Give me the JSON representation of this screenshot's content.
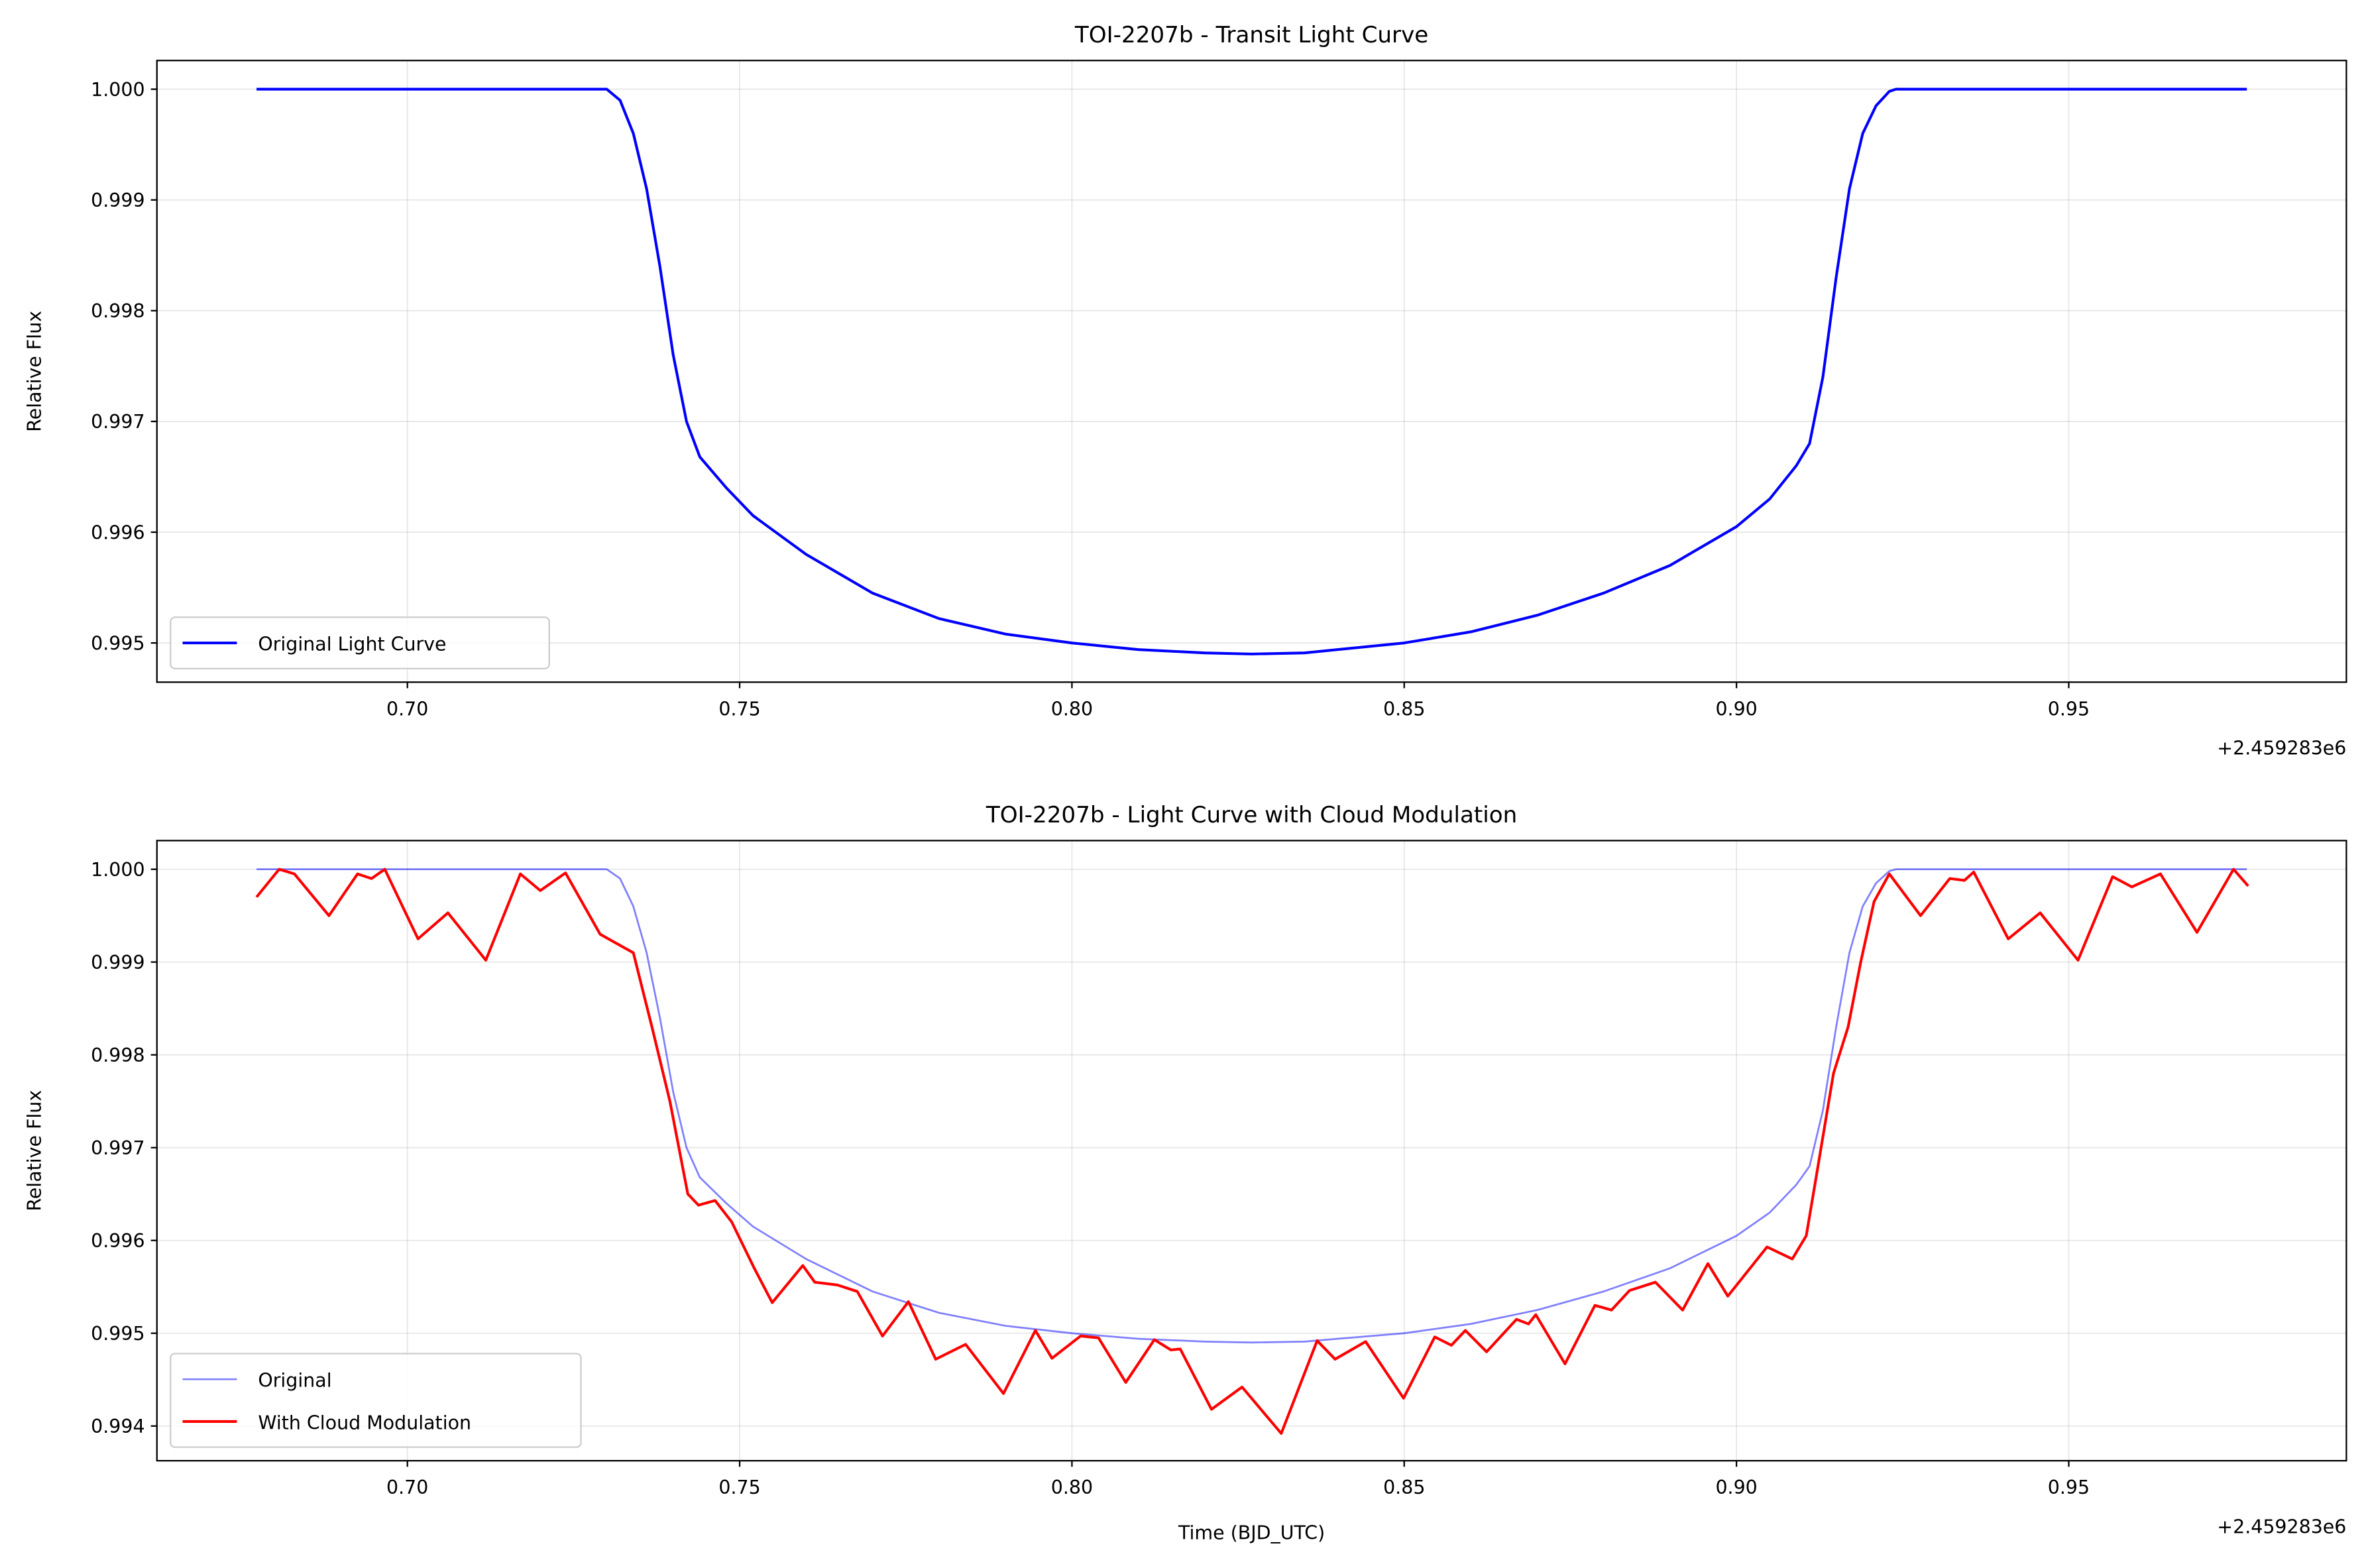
{
  "chart_data": [
    {
      "type": "line",
      "title": "TOI-2207b - Transit Light Curve",
      "ylabel": "Relative Flux",
      "x_offset_label": "+2.459283e6",
      "xlim": [
        0.66231,
        0.99178
      ],
      "ylim": [
        0.994646,
        1.000259
      ],
      "xticks": [
        {
          "value": 0.7,
          "label": "0.70"
        },
        {
          "value": 0.75,
          "label": "0.75"
        },
        {
          "value": 0.8,
          "label": "0.80"
        },
        {
          "value": 0.85,
          "label": "0.85"
        },
        {
          "value": 0.9,
          "label": "0.90"
        },
        {
          "value": 0.95,
          "label": "0.95"
        }
      ],
      "yticks": [
        0.995,
        0.996,
        0.997,
        0.998,
        0.999,
        {
          "value": 1,
          "label": "1.000"
        }
      ],
      "grid": true,
      "legend": "lower left",
      "series": [
        {
          "name": "Original Light Curve",
          "color": "#0000ff",
          "alpha": 1,
          "linewidth": 1.8,
          "x": [
            0.6773,
            0.73,
            0.732,
            0.734,
            0.736,
            0.738,
            0.74,
            0.742,
            0.744,
            0.748,
            0.752,
            0.76,
            0.77,
            0.78,
            0.79,
            0.8,
            0.81,
            0.82,
            0.827,
            0.835,
            0.85,
            0.86,
            0.87,
            0.88,
            0.89,
            0.9,
            0.905,
            0.909,
            0.911,
            0.913,
            0.915,
            0.917,
            0.919,
            0.921,
            0.923,
            0.924,
            0.9768
          ],
          "values": [
            1,
            1,
            0.9999,
            0.9996,
            0.9991,
            0.9984,
            0.9976,
            0.997,
            0.99668,
            0.9964,
            0.99615,
            0.9958,
            0.99545,
            0.99522,
            0.99508,
            0.995,
            0.99494,
            0.99491,
            0.9949,
            0.99491,
            0.995,
            0.9951,
            0.99525,
            0.99545,
            0.9957,
            0.99605,
            0.9963,
            0.9966,
            0.9968,
            0.9974,
            0.9983,
            0.9991,
            0.9996,
            0.99985,
            0.99998,
            1,
            1
          ]
        }
      ]
    },
    {
      "type": "line",
      "title": "TOI-2207b - Light Curve with Cloud Modulation",
      "ylabel": "Relative Flux",
      "xlabel": "Time (BJD_UTC)",
      "x_offset_label": "+2.459283e6",
      "xlim": [
        0.66231,
        0.99178
      ],
      "ylim": [
        0.993626,
        1.000309
      ],
      "xticks": [
        {
          "value": 0.7,
          "label": "0.70"
        },
        {
          "value": 0.75,
          "label": "0.75"
        },
        {
          "value": 0.8,
          "label": "0.80"
        },
        {
          "value": 0.85,
          "label": "0.85"
        },
        {
          "value": 0.9,
          "label": "0.90"
        },
        {
          "value": 0.95,
          "label": "0.95"
        }
      ],
      "yticks": [
        0.994,
        0.995,
        0.996,
        0.997,
        0.998,
        0.999,
        {
          "value": 1,
          "label": "1.000"
        }
      ],
      "grid": true,
      "legend": "lower left",
      "series": [
        {
          "name": "Original",
          "color": "#0000ff",
          "alpha": 0.5,
          "linewidth": 1.2,
          "x": [
            0.6773,
            0.73,
            0.732,
            0.734,
            0.736,
            0.738,
            0.74,
            0.742,
            0.744,
            0.748,
            0.752,
            0.76,
            0.77,
            0.78,
            0.79,
            0.8,
            0.81,
            0.82,
            0.827,
            0.835,
            0.85,
            0.86,
            0.87,
            0.88,
            0.89,
            0.9,
            0.905,
            0.909,
            0.911,
            0.913,
            0.915,
            0.917,
            0.919,
            0.921,
            0.923,
            0.924,
            0.9768
          ],
          "values": [
            1,
            1,
            0.9999,
            0.9996,
            0.9991,
            0.9984,
            0.9976,
            0.997,
            0.99668,
            0.9964,
            0.99615,
            0.9958,
            0.99545,
            0.99522,
            0.99508,
            0.995,
            0.99494,
            0.99491,
            0.9949,
            0.99491,
            0.995,
            0.9951,
            0.99525,
            0.99545,
            0.9957,
            0.99605,
            0.9963,
            0.9966,
            0.9968,
            0.9974,
            0.9983,
            0.9991,
            0.9996,
            0.99985,
            0.99998,
            1,
            1
          ]
        },
        {
          "name": "With Cloud Modulation",
          "color": "#ff0000",
          "alpha": 1,
          "linewidth": 1.8,
          "x": [
            0.6773,
            0.6807,
            0.683,
            0.6882,
            0.6925,
            0.6946,
            0.6966,
            0.7016,
            0.7061,
            0.7118,
            0.717,
            0.72,
            0.7238,
            0.729,
            0.734,
            0.7368,
            0.7395,
            0.7422,
            0.7438,
            0.7463,
            0.7488,
            0.7522,
            0.7549,
            0.7595,
            0.7613,
            0.7647,
            0.7677,
            0.7715,
            0.7754,
            0.7795,
            0.784,
            0.7897,
            0.7945,
            0.797,
            0.8013,
            0.804,
            0.8081,
            0.8124,
            0.8149,
            0.8163,
            0.821,
            0.8256,
            0.8315,
            0.8369,
            0.8396,
            0.8442,
            0.8499,
            0.8546,
            0.8571,
            0.8592,
            0.8624,
            0.8669,
            0.8687,
            0.8698,
            0.8742,
            0.8787,
            0.8812,
            0.8839,
            0.8878,
            0.8919,
            0.8957,
            0.8987,
            0.9046,
            0.9084,
            0.9105,
            0.9118,
            0.9146,
            0.9168,
            0.9187,
            0.9207,
            0.923,
            0.9277,
            0.9321,
            0.9343,
            0.9357,
            0.9409,
            0.9457,
            0.9514,
            0.9566,
            0.9595,
            0.9638,
            0.9693,
            0.9748,
            0.977
          ],
          "values": [
            0.9997,
            1,
            0.99995,
            0.9995,
            0.99995,
            0.9999,
            1,
            0.99925,
            0.99953,
            0.99902,
            0.99995,
            0.99977,
            0.99996,
            0.9993,
            0.9991,
            0.9983,
            0.9975,
            0.9965,
            0.99638,
            0.99643,
            0.9962,
            0.9957,
            0.99533,
            0.99573,
            0.99555,
            0.99552,
            0.99545,
            0.99497,
            0.99534,
            0.99472,
            0.99488,
            0.99435,
            0.99503,
            0.99473,
            0.99497,
            0.99495,
            0.99447,
            0.99493,
            0.99482,
            0.99483,
            0.99418,
            0.99442,
            0.99392,
            0.99492,
            0.99472,
            0.99491,
            0.9943,
            0.99496,
            0.99487,
            0.99503,
            0.9948,
            0.99515,
            0.9951,
            0.9952,
            0.99467,
            0.9953,
            0.99525,
            0.99546,
            0.99555,
            0.99525,
            0.99575,
            0.9954,
            0.99593,
            0.9958,
            0.99605,
            0.9966,
            0.9978,
            0.9983,
            0.999,
            0.99965,
            0.99995,
            0.9995,
            0.9999,
            0.99988,
            0.99997,
            0.99925,
            0.99953,
            0.99902,
            0.99992,
            0.99981,
            0.99995,
            0.99932,
            1,
            0.99982
          ]
        }
      ]
    }
  ]
}
